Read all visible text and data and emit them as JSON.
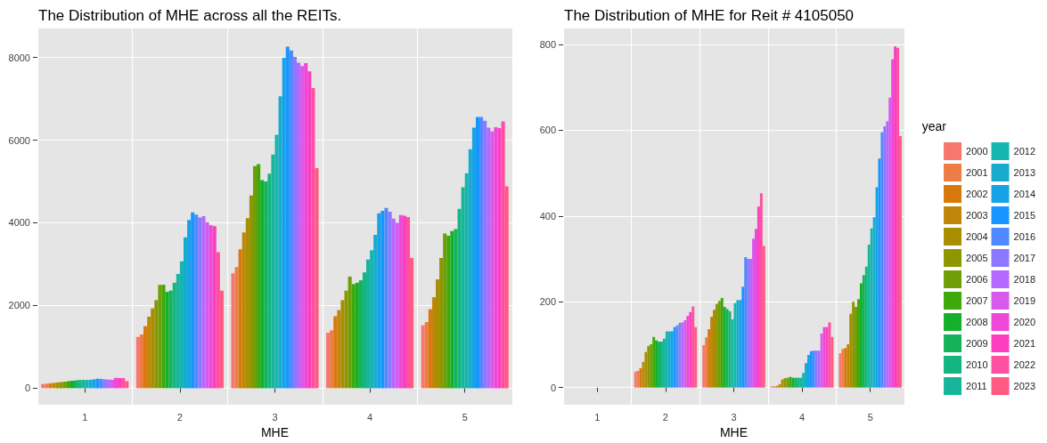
{
  "chart_data": [
    {
      "type": "bar",
      "title": "The Distribution of MHE across all the REITs.",
      "xlabel": "MHE",
      "categories": [
        "1",
        "2",
        "3",
        "4",
        "5"
      ],
      "ylim": [
        -400,
        8700
      ],
      "yticks": [
        0,
        2000,
        4000,
        6000,
        8000
      ],
      "grid": true,
      "legend": false,
      "series": [
        {
          "color": "#F8766D",
          "values": [
            100,
            1240,
            2780,
            1340,
            1520
          ]
        },
        {
          "color": "#EE7D44",
          "values": [
            110,
            1300,
            2930,
            1400,
            1600
          ]
        },
        {
          "color": "#D8790B",
          "values": [
            120,
            1500,
            3360,
            1740,
            1910
          ]
        },
        {
          "color": "#C0860A",
          "values": [
            130,
            1730,
            3770,
            1890,
            2200
          ]
        },
        {
          "color": "#A88E00",
          "values": [
            140,
            1930,
            4110,
            2130,
            2630
          ]
        },
        {
          "color": "#8E9600",
          "values": [
            150,
            2130,
            4660,
            2360,
            3150
          ]
        },
        {
          "color": "#6E9E08",
          "values": [
            160,
            2500,
            5370,
            2700,
            3740
          ]
        },
        {
          "color": "#3EA90A",
          "values": [
            170,
            2500,
            5420,
            2520,
            3690
          ]
        },
        {
          "color": "#15B02A",
          "values": [
            180,
            2330,
            5030,
            2550,
            3800
          ]
        },
        {
          "color": "#14B35A",
          "values": [
            190,
            2360,
            5000,
            2610,
            3850
          ]
        },
        {
          "color": "#14B580",
          "values": [
            195,
            2550,
            5190,
            2800,
            4340
          ]
        },
        {
          "color": "#17B59C",
          "values": [
            200,
            2760,
            5650,
            3110,
            4860
          ]
        },
        {
          "color": "#17B5B0",
          "values": [
            200,
            3070,
            6130,
            3340,
            5200
          ]
        },
        {
          "color": "#17ACCF",
          "values": [
            205,
            3650,
            7060,
            3710,
            5780
          ]
        },
        {
          "color": "#16A2E6",
          "values": [
            215,
            4070,
            7990,
            4230,
            6300
          ]
        },
        {
          "color": "#1796FF",
          "values": [
            230,
            4250,
            8260,
            4290,
            6560
          ]
        },
        {
          "color": "#5088FF",
          "values": [
            225,
            4200,
            8170,
            4360,
            6560
          ]
        },
        {
          "color": "#8C78FF",
          "values": [
            215,
            4130,
            8010,
            4270,
            6470
          ]
        },
        {
          "color": "#B468FF",
          "values": [
            210,
            4160,
            7870,
            4100,
            6300
          ]
        },
        {
          "color": "#D85AED",
          "values": [
            205,
            4010,
            7790,
            4000,
            6210
          ]
        },
        {
          "color": "#EE48D8",
          "values": [
            250,
            3940,
            7860,
            4190,
            6310
          ]
        },
        {
          "color": "#FC3FBF",
          "values": [
            245,
            3920,
            7660,
            4170,
            6290
          ]
        },
        {
          "color": "#FF4FA0",
          "values": [
            245,
            3290,
            7260,
            4140,
            6450
          ]
        },
        {
          "color": "#FF5A82",
          "values": [
            170,
            2360,
            5320,
            3150,
            4880
          ]
        }
      ]
    },
    {
      "type": "bar",
      "title": "The Distribution of MHE for Reit # 4105050",
      "xlabel": "MHE",
      "categories": [
        "1",
        "2",
        "3",
        "4",
        "5"
      ],
      "ylim": [
        -40,
        837
      ],
      "yticks": [
        0,
        200,
        400,
        600,
        800
      ],
      "grid": true,
      "legend": "right",
      "legend_title": "year",
      "series": [
        {
          "name": "2000",
          "color": "#F8766D",
          "values": [
            null,
            37,
            99,
            3,
            80
          ]
        },
        {
          "name": "2001",
          "color": "#EE7D44",
          "values": [
            null,
            39,
            117,
            3,
            90
          ]
        },
        {
          "name": "2002",
          "color": "#D8790B",
          "values": [
            null,
            45,
            136,
            4,
            92
          ]
        },
        {
          "name": "2003",
          "color": "#C0860A",
          "values": [
            null,
            60,
            165,
            8,
            101
          ]
        },
        {
          "name": "2004",
          "color": "#A88E00",
          "values": [
            null,
            83,
            181,
            19,
            172
          ]
        },
        {
          "name": "2005",
          "color": "#8E9600",
          "values": [
            null,
            97,
            195,
            22,
            200
          ]
        },
        {
          "name": "2006",
          "color": "#6E9E08",
          "values": [
            null,
            101,
            202,
            23,
            188
          ]
        },
        {
          "name": "2007",
          "color": "#3EA90A",
          "values": [
            null,
            118,
            209,
            25,
            206
          ]
        },
        {
          "name": "2008",
          "color": "#15B02A",
          "values": [
            null,
            110,
            188,
            23,
            243
          ]
        },
        {
          "name": "2009",
          "color": "#14B35A",
          "values": [
            null,
            107,
            183,
            23,
            262
          ]
        },
        {
          "name": "2010",
          "color": "#14B580",
          "values": [
            null,
            107,
            178,
            23,
            282
          ]
        },
        {
          "name": "2011",
          "color": "#17B59C",
          "values": [
            null,
            114,
            159,
            23,
            333
          ]
        },
        {
          "name": "2012",
          "color": "#17B5B0",
          "values": [
            null,
            131,
            197,
            34,
            371
          ]
        },
        {
          "name": "2013",
          "color": "#17ACCF",
          "values": [
            null,
            131,
            204,
            57,
            397
          ]
        },
        {
          "name": "2014",
          "color": "#16A2E6",
          "values": [
            null,
            131,
            204,
            76,
            467
          ]
        },
        {
          "name": "2015",
          "color": "#1796FF",
          "values": [
            null,
            141,
            235,
            85,
            534
          ]
        },
        {
          "name": "2016",
          "color": "#5088FF",
          "values": [
            null,
            145,
            304,
            86,
            595
          ]
        },
        {
          "name": "2017",
          "color": "#8C78FF",
          "values": [
            null,
            151,
            300,
            86,
            609
          ]
        },
        {
          "name": "2018",
          "color": "#B468FF",
          "values": [
            null,
            152,
            300,
            86,
            621
          ]
        },
        {
          "name": "2019",
          "color": "#D85AED",
          "values": [
            null,
            157,
            347,
            126,
            676
          ]
        },
        {
          "name": "2020",
          "color": "#EE48D8",
          "values": [
            null,
            167,
            370,
            141,
            765
          ]
        },
        {
          "name": "2021",
          "color": "#FC3FBF",
          "values": [
            null,
            176,
            422,
            141,
            795
          ]
        },
        {
          "name": "2022",
          "color": "#FF4FA0",
          "values": [
            null,
            189,
            453,
            152,
            792
          ]
        },
        {
          "name": "2023",
          "color": "#FF5A82",
          "values": [
            null,
            141,
            330,
            118,
            586
          ]
        }
      ]
    }
  ]
}
